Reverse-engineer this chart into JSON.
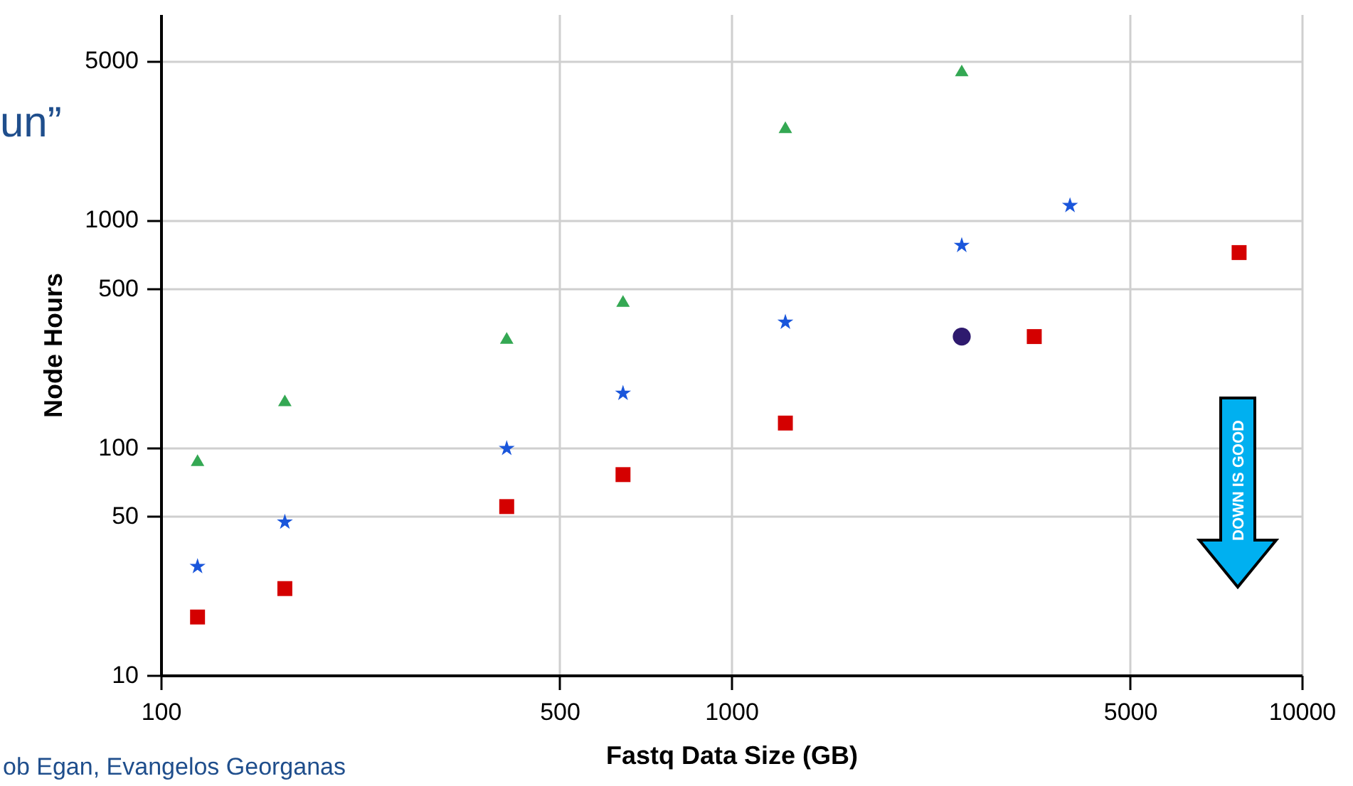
{
  "chart_data": {
    "type": "scatter",
    "title": "un”",
    "xlabel": "Fastq Data Size (GB)",
    "ylabel": "Node Hours",
    "log": "xy",
    "grid": true,
    "xlim": [
      100,
      10000
    ],
    "xticks": [
      100,
      500,
      1000,
      5000,
      10000
    ],
    "ylim": [
      10,
      8000
    ],
    "yticks": [
      10,
      50,
      100,
      500,
      1000,
      5000
    ],
    "series": [
      {
        "color": "#34a853",
        "marker": "triangle",
        "x": [
          116,
          165,
          404,
          646,
          1244,
          2535
        ],
        "values": [
          88,
          161,
          303,
          440,
          2550,
          4530
        ]
      },
      {
        "color": "#1a56db",
        "marker": "star",
        "x": [
          116,
          165,
          404,
          646,
          1244,
          2535,
          3924
        ],
        "values": [
          30,
          47,
          99,
          173,
          355,
          772,
          1155
        ]
      },
      {
        "color": "#d40000",
        "marker": "square",
        "x": [
          116,
          165,
          404,
          646,
          1244,
          3397,
          7765
        ],
        "values": [
          18,
          24,
          55,
          76,
          128,
          307,
          718
        ]
      },
      {
        "color": "#2e1a6e",
        "marker": "circle",
        "x": [
          2535
        ],
        "values": [
          307
        ]
      }
    ],
    "annotations": [
      "DOWN IS GOOD",
      "ob Egan, Evangelos Georganas"
    ]
  }
}
